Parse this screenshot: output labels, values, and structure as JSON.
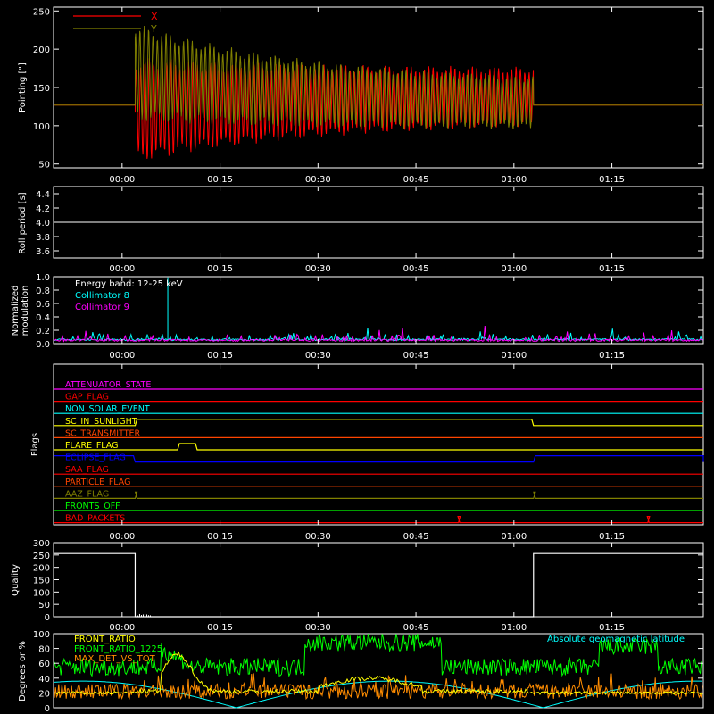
{
  "chart_data": [
    {
      "type": "line",
      "ylabel": "Pointing [\"]",
      "yticks": [
        "250",
        "200",
        "150",
        "100",
        "50"
      ],
      "ylim": [
        45,
        255
      ],
      "xticks": [
        "00:00",
        "00:15",
        "00:30",
        "00:45",
        "01:00",
        "01:15"
      ],
      "legend": "top-left",
      "series": [
        {
          "name": "X",
          "color": "#ff0000",
          "baseline": 127,
          "before": 127,
          "start_center": 120,
          "end_center": 140,
          "start_amp": 62,
          "end_amp": 32
        },
        {
          "name": "Y",
          "color": "#808000",
          "baseline": 127,
          "before": 127,
          "start_center": 170,
          "end_center": 125,
          "start_amp": 58,
          "end_amp": 28
        }
      ],
      "data_start": "00:02",
      "data_end": "01:03"
    },
    {
      "type": "line",
      "ylabel": "Roll period [s]",
      "yticks": [
        "4.4",
        "4.2",
        "4.0",
        "3.8",
        "3.6"
      ],
      "ylim": [
        3.5,
        4.5
      ],
      "xticks": [
        "00:00",
        "00:15",
        "00:30",
        "00:45",
        "01:00",
        "01:15"
      ],
      "series": [
        {
          "name": "",
          "color": "#ffffff",
          "value": 4.0
        }
      ]
    },
    {
      "type": "line",
      "ylabel": "Normalized modulation",
      "yticks": [
        "1.0",
        "0.8",
        "0.6",
        "0.4",
        "0.2",
        "0.0"
      ],
      "ylim": [
        0,
        1.0
      ],
      "xticks": [
        "00:00",
        "00:15",
        "00:30",
        "00:45",
        "01:00",
        "01:15"
      ],
      "legend": "top-left",
      "annotation": "Energy band: 12-25 keV",
      "series": [
        {
          "name": "Collimator 8",
          "color": "#00ffff",
          "baseline": 0.06,
          "spike_at": "00:07",
          "spike_value": 0.99
        },
        {
          "name": "Collimator 9",
          "color": "#ff00ff",
          "baseline": 0.05
        }
      ]
    },
    {
      "type": "line",
      "ylabel": "Flags",
      "xticks": [
        "00:00",
        "00:15",
        "00:30",
        "00:45",
        "01:00",
        "01:15"
      ],
      "flags": [
        {
          "name": "ATTENUATOR_STATE",
          "color": "#ff00ff",
          "pulses": []
        },
        {
          "name": "GAP_FLAG",
          "color": "#ff0000",
          "pulses": []
        },
        {
          "name": "NON_SOLAR_EVENT",
          "color": "#00ffff",
          "pulses": []
        },
        {
          "name": "SC_IN_SUNLIGHT",
          "color": "#ffff00",
          "pulses": [
            [
              "00:02",
              "01:03"
            ]
          ]
        },
        {
          "name": "SC_TRANSMITTER",
          "color": "#ff4500",
          "pulses": []
        },
        {
          "name": "FLARE_FLAG",
          "color": "#ffff00",
          "pulses": [
            [
              "00:08.5",
              "00:11.5"
            ]
          ]
        },
        {
          "name": "ECLIPSE_FLAG",
          "color": "#0000ff",
          "pulses": [
            [
              "-00:15",
              "00:02"
            ],
            [
              "01:03",
              "01:30"
            ]
          ]
        },
        {
          "name": "SAA_FLAG",
          "color": "#ff0000",
          "pulses": []
        },
        {
          "name": "PARTICLE_FLAG",
          "color": "#ff4500",
          "pulses": []
        },
        {
          "name": "AAZ_FLAG",
          "color": "#808000",
          "pulses": [
            [
              "00:02",
              "00:02.3"
            ],
            [
              "01:03",
              "01:03.3"
            ]
          ]
        },
        {
          "name": "FRONTS_OFF",
          "color": "#00ff00",
          "pulses": []
        },
        {
          "name": "BAD_PACKETS",
          "color": "#ff0000",
          "pulses": [
            [
              "00:51.5",
              "00:51.7"
            ],
            [
              "01:20.5",
              "01:20.7"
            ]
          ]
        }
      ]
    },
    {
      "type": "line",
      "ylabel": "Quality",
      "yticks": [
        "300",
        "250",
        "200",
        "150",
        "100",
        "50",
        "0"
      ],
      "ylim": [
        0,
        300
      ],
      "xticks": [
        "00:00",
        "00:15",
        "00:30",
        "00:45",
        "01:00",
        "01:15"
      ],
      "series": [
        {
          "name": "",
          "color": "#ffffff",
          "high": 256,
          "low": 0,
          "low_start": "00:02",
          "low_end": "01:03"
        }
      ]
    },
    {
      "type": "line",
      "ylabel": "Degrees or %",
      "yticks": [
        "100",
        "80",
        "60",
        "40",
        "20",
        "0"
      ],
      "ylim": [
        0,
        100
      ],
      "xticks": [
        "00:00",
        "00:15",
        "00:30",
        "00:45",
        "01:00",
        "01:15"
      ],
      "legend": "top-left",
      "series": [
        {
          "name": "FRONT_RATIO",
          "color": "#ffff00"
        },
        {
          "name": "FRONT_RATIO_1225",
          "color": "#00ff00"
        },
        {
          "name": "MAX_DET_VS_TOT",
          "color": "#ff8c00"
        },
        {
          "name": "Absolute geomagnetic latitude",
          "color": "#00ffff"
        }
      ]
    }
  ]
}
